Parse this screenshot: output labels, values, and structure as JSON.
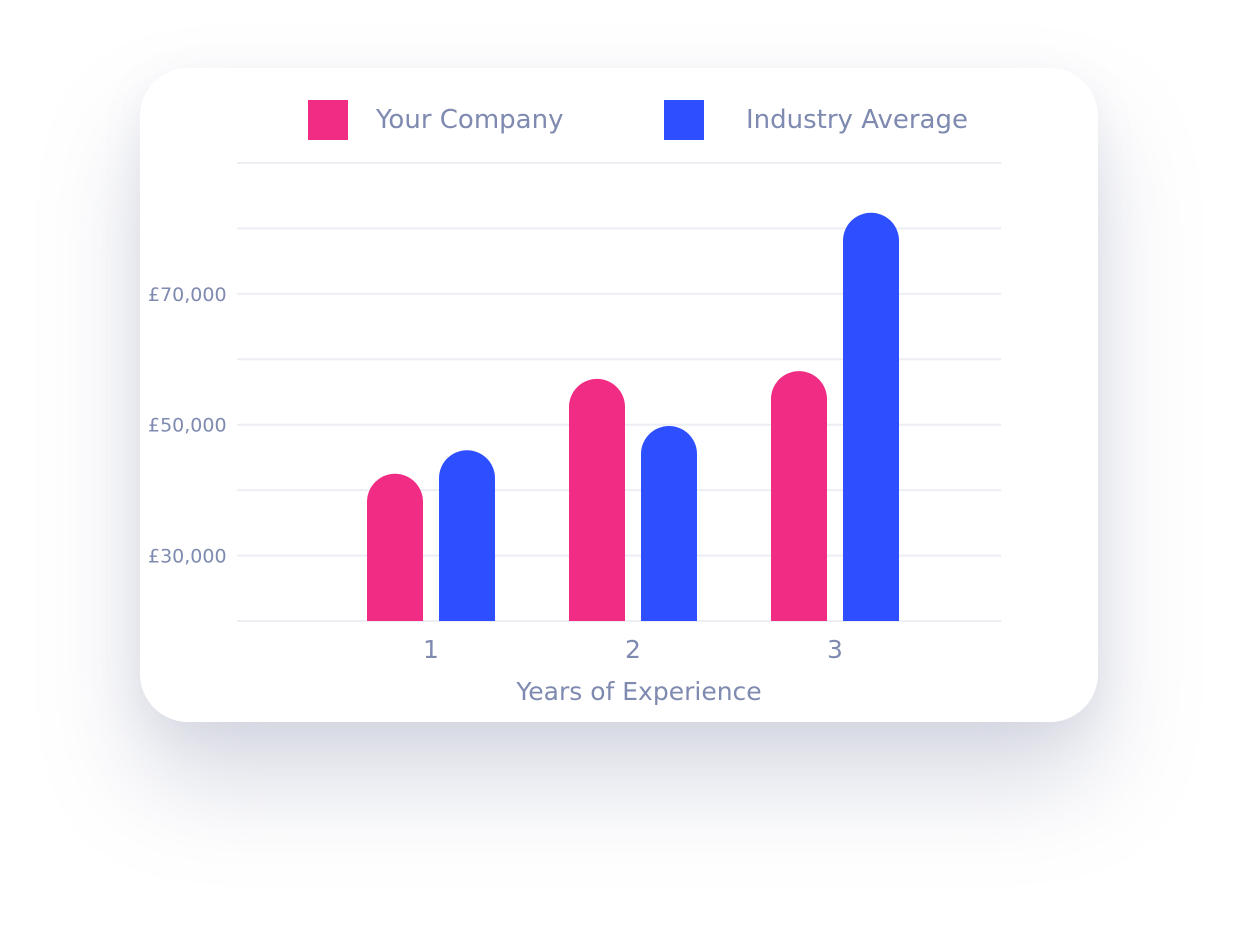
{
  "chart_data": {
    "type": "bar",
    "categories": [
      "1",
      "2",
      "3"
    ],
    "series": [
      {
        "name": "Your Company",
        "color": "#f02c85",
        "values": [
          42500,
          57000,
          58200
        ]
      },
      {
        "name": "Industry Average",
        "color": "#2d4fff",
        "values": [
          46100,
          49800,
          82400
        ]
      }
    ],
    "xlabel": "Years of Experience",
    "ylabel": "",
    "yticks": [
      {
        "value": 30000,
        "label": "£30,000"
      },
      {
        "value": 50000,
        "label": "£50,000"
      },
      {
        "value": 70000,
        "label": "£70,000"
      }
    ],
    "ylim": [
      20000,
      90000
    ],
    "gridlines": [
      20000,
      30000,
      40000,
      50000,
      60000,
      70000,
      80000,
      90000
    ],
    "grid": true,
    "legend_position": "top"
  },
  "legend": {
    "items": [
      {
        "label": "Your Company",
        "color": "#f02c85"
      },
      {
        "label": "Industry Average",
        "color": "#2d4fff"
      }
    ]
  }
}
